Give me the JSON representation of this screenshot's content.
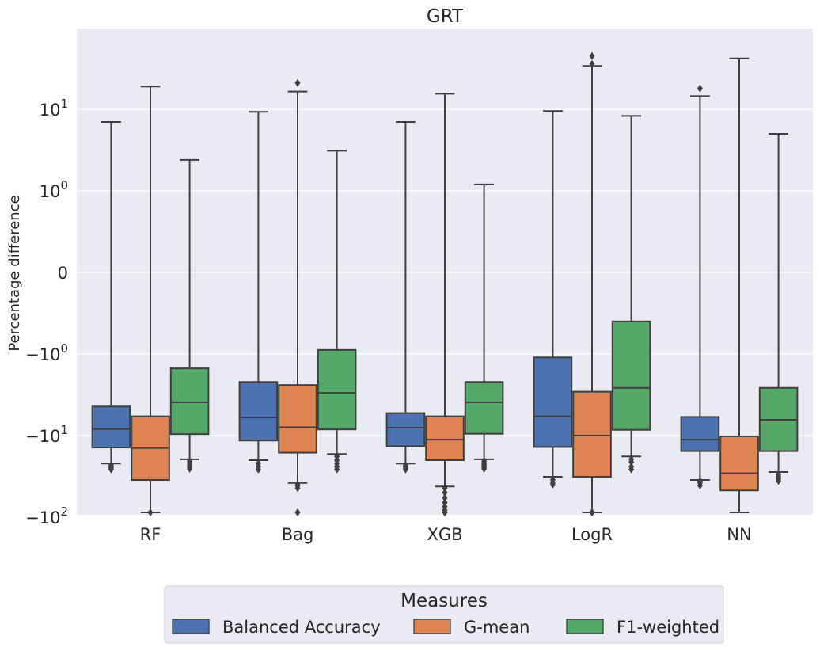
{
  "chart_data": {
    "type": "box",
    "title": "GRT",
    "xlabel": "",
    "ylabel": "Percentage difference",
    "yscale": "symlog",
    "yticks": [
      {
        "value": 10,
        "base": "10",
        "exp": "1",
        "sign": ""
      },
      {
        "value": 1,
        "base": "10",
        "exp": "0",
        "sign": ""
      },
      {
        "value": 0,
        "text": "0"
      },
      {
        "value": -1,
        "base": "10",
        "exp": "0",
        "sign": "−"
      },
      {
        "value": -10,
        "base": "10",
        "exp": "1",
        "sign": "−"
      },
      {
        "value": -100,
        "base": "10",
        "exp": "2",
        "sign": "−"
      }
    ],
    "ylim": [
      -105,
      80
    ],
    "grid": true,
    "categories": [
      "RF",
      "Bag",
      "XGB",
      "LogR",
      "NN"
    ],
    "legend": {
      "title": "Measures",
      "placement": "bottom-center",
      "entries": [
        "Balanced Accuracy",
        "G-mean",
        "F1-weighted"
      ]
    },
    "series": [
      {
        "name": "Balanced Accuracy",
        "color": "#4c72b0",
        "boxes": [
          {
            "whislo": -22,
            "q1": -14,
            "med": -8.3,
            "q3": -4.4,
            "whishi": 7.0,
            "fliers": [
              -23,
              -24,
              -25,
              -26
            ]
          },
          {
            "whislo": -20,
            "q1": -11.5,
            "med": -6.0,
            "q3": -2.2,
            "whishi": 9.3,
            "fliers": [
              -22,
              -24,
              -26
            ]
          },
          {
            "whislo": -22,
            "q1": -13.5,
            "med": -8.0,
            "q3": -5.3,
            "whishi": 7.0,
            "fliers": [
              -23,
              -24,
              -25,
              -26
            ]
          },
          {
            "whislo": -32,
            "q1": -13.8,
            "med": -5.8,
            "q3": -1.1,
            "whishi": 9.5,
            "fliers": [
              -35,
              -38,
              -40
            ]
          },
          {
            "whislo": -35,
            "q1": -15.5,
            "med": -11.2,
            "q3": -5.9,
            "whishi": 14.5,
            "fliers": [
              -36,
              -38,
              -41,
              18
            ]
          }
        ]
      },
      {
        "name": "G-mean",
        "color": "#dd8452",
        "boxes": [
          {
            "whislo": -100,
            "q1": -35,
            "med": -14.2,
            "q3": -5.8,
            "whishi": 19,
            "fliers": [
              -100
            ]
          },
          {
            "whislo": -38,
            "q1": -16.2,
            "med": -7.9,
            "q3": -2.4,
            "whishi": 16.5,
            "fliers": [
              -39,
              -41,
              -44,
              -100,
              21
            ]
          },
          {
            "whislo": -42,
            "q1": -20,
            "med": -11.2,
            "q3": -5.8,
            "whishi": 15.5,
            "fliers": [
              -44,
              -50,
              -58,
              -66,
              -74,
              -82,
              -90,
              -100
            ]
          },
          {
            "whislo": -90,
            "q1": -32,
            "med": -10,
            "q3": -2.9,
            "whishi": 34,
            "fliers": [
              -95,
              -100,
              36,
              45
            ]
          },
          {
            "whislo": -100,
            "q1": -47,
            "med": -29,
            "q3": -10.2,
            "whishi": 42,
            "fliers": []
          }
        ]
      },
      {
        "name": "F1-weighted",
        "color": "#55a868",
        "boxes": [
          {
            "whislo": -19.5,
            "q1": -9.6,
            "med": -3.9,
            "q3": -1.5,
            "whishi": 2.4,
            "fliers": [
              -20.5,
              -21.5,
              -22.5,
              -23.5,
              -24.5,
              -25.5
            ]
          },
          {
            "whislo": -16.8,
            "q1": -8.4,
            "med": -3.0,
            "q3": -0.95,
            "whishi": 3.1,
            "fliers": [
              -18,
              -20,
              -22,
              -24,
              -26
            ]
          },
          {
            "whislo": -19.5,
            "q1": -9.5,
            "med": -3.9,
            "q3": -2.2,
            "whishi": 1.2,
            "fliers": [
              -20.5,
              -21.5,
              -22.5,
              -23.5,
              -24.5,
              -25.5
            ]
          },
          {
            "whislo": -18,
            "q1": -8.5,
            "med": -2.6,
            "q3": -0.6,
            "whishi": 8.3,
            "fliers": [
              -19.5,
              -21,
              -24,
              -26
            ]
          },
          {
            "whislo": -28,
            "q1": -15.5,
            "med": -6.4,
            "q3": -2.6,
            "whishi": 5.0,
            "fliers": [
              -30,
              -32,
              -34,
              -36
            ]
          }
        ]
      }
    ]
  }
}
